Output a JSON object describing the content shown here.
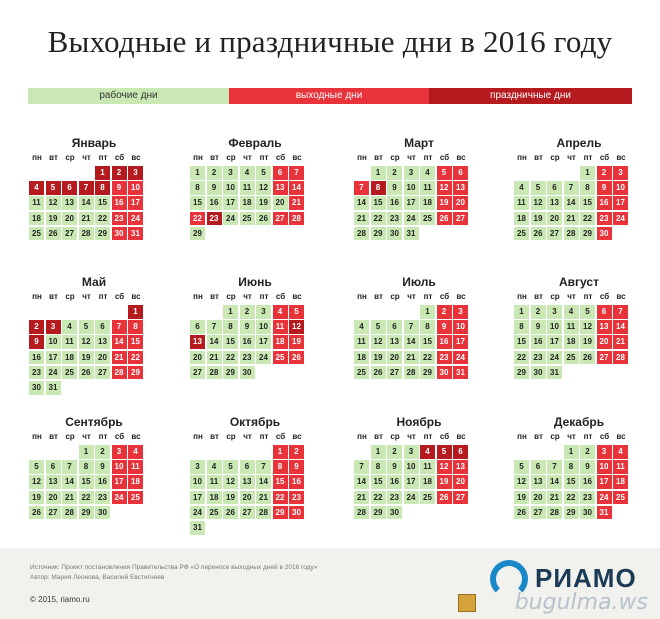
{
  "title": "Выходные и праздничные дни в 2016 году",
  "legend": {
    "work": "рабочие дни",
    "weekend": "выходные дни",
    "holiday": "праздничные дни"
  },
  "colors": {
    "work": "#c9e8b4",
    "weekend": "#e8333a",
    "holiday": "#b51a1f"
  },
  "weekdays": [
    "пн",
    "вт",
    "ср",
    "чт",
    "пт",
    "сб",
    "вс"
  ],
  "months": [
    {
      "name": "Январь",
      "start": 4,
      "days": 31,
      "holidays": [
        1,
        2,
        3,
        4,
        5,
        6,
        7,
        8
      ],
      "weekends": [
        9,
        10,
        16,
        17,
        23,
        24,
        30,
        31
      ],
      "workdays": []
    },
    {
      "name": "Февраль",
      "start": 0,
      "days": 29,
      "holidays": [
        23
      ],
      "weekends": [
        6,
        7,
        13,
        14,
        21,
        22,
        27,
        28
      ],
      "workdays": [
        20
      ]
    },
    {
      "name": "Март",
      "start": 1,
      "days": 31,
      "holidays": [
        8
      ],
      "weekends": [
        5,
        6,
        7,
        12,
        13,
        19,
        20,
        26,
        27
      ],
      "workdays": []
    },
    {
      "name": "Апрель",
      "start": 4,
      "days": 30,
      "holidays": [],
      "weekends": [
        2,
        3,
        9,
        10,
        16,
        17,
        23,
        24,
        30
      ],
      "workdays": []
    },
    {
      "name": "Май",
      "start": 6,
      "days": 31,
      "holidays": [
        1,
        2,
        3,
        9
      ],
      "weekends": [
        7,
        8,
        14,
        15,
        21,
        22,
        28,
        29
      ],
      "workdays": []
    },
    {
      "name": "Июнь",
      "start": 2,
      "days": 30,
      "holidays": [
        12,
        13
      ],
      "weekends": [
        4,
        5,
        11,
        18,
        19,
        25,
        26
      ],
      "workdays": []
    },
    {
      "name": "Июль",
      "start": 4,
      "days": 31,
      "holidays": [],
      "weekends": [
        2,
        3,
        9,
        10,
        16,
        17,
        23,
        24,
        30,
        31
      ],
      "workdays": []
    },
    {
      "name": "Август",
      "start": 0,
      "days": 31,
      "holidays": [],
      "weekends": [
        6,
        7,
        13,
        14,
        20,
        21,
        27,
        28
      ],
      "workdays": []
    },
    {
      "name": "Сентябрь",
      "start": 3,
      "days": 30,
      "holidays": [],
      "weekends": [
        3,
        4,
        10,
        11,
        17,
        18,
        24,
        25
      ],
      "workdays": []
    },
    {
      "name": "Октябрь",
      "start": 5,
      "days": 31,
      "holidays": [],
      "weekends": [
        1,
        2,
        8,
        9,
        15,
        16,
        22,
        23,
        29,
        30
      ],
      "workdays": []
    },
    {
      "name": "Ноябрь",
      "start": 1,
      "days": 30,
      "holidays": [
        4,
        5,
        6
      ],
      "weekends": [
        12,
        13,
        19,
        20,
        26,
        27
      ],
      "workdays": []
    },
    {
      "name": "Декабрь",
      "start": 3,
      "days": 31,
      "holidays": [],
      "weekends": [
        3,
        4,
        10,
        11,
        17,
        18,
        24,
        25,
        31
      ],
      "workdays": []
    }
  ],
  "footer": {
    "source": "Источник: Проект постановления Правительства РФ «О переносе выходных дней в 2016 году»",
    "author": "Автор: Мария Леонова, Василий Евстигнеев",
    "copyright": "© 2015, riamo.ru",
    "logo": "РИАМО",
    "watermark": "bugulma.ws"
  }
}
